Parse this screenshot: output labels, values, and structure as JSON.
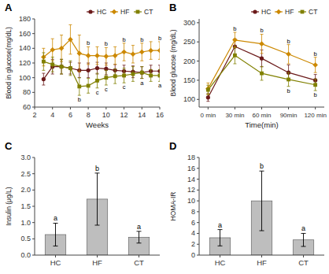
{
  "chart_data": [
    {
      "type": "line",
      "title": "A",
      "xlabel": "Weeks",
      "ylabel": "Blood in glucose(mg/dL)",
      "x": [
        3,
        4,
        5,
        6,
        7,
        8,
        9,
        10,
        11,
        12,
        13,
        14,
        15,
        16
      ],
      "xlim": [
        2,
        16
      ],
      "xticks": [
        2,
        4,
        6,
        8,
        10,
        12,
        14,
        16
      ],
      "ylim": [
        60,
        180
      ],
      "yticks": [
        60,
        80,
        100,
        120,
        140,
        160,
        180
      ],
      "legend": "upper right",
      "grid": false,
      "series": [
        {
          "name": "HC",
          "color": "#6B1A1A",
          "marker": "circle",
          "values": [
            98,
            115,
            115,
            113,
            110,
            110,
            113,
            112,
            110,
            109,
            108,
            107,
            109,
            109
          ],
          "errors": [
            8,
            10,
            10,
            8,
            10,
            10,
            8,
            8,
            8,
            8,
            8,
            8,
            8,
            8
          ]
        },
        {
          "name": "HF",
          "color": "#CC8800",
          "marker": "diamond",
          "values": [
            128,
            138,
            140,
            152,
            133,
            130,
            130,
            129,
            130,
            135,
            132,
            135,
            137,
            137
          ],
          "errors": [
            12,
            15,
            18,
            20,
            25,
            12,
            12,
            12,
            12,
            12,
            12,
            12,
            12,
            12
          ]
        },
        {
          "name": "CT",
          "color": "#808000",
          "marker": "square",
          "values": [
            122,
            118,
            115,
            113,
            88,
            89,
            96,
            100,
            102,
            103,
            105,
            107,
            103,
            103
          ],
          "errors": [
            12,
            10,
            10,
            10,
            12,
            10,
            10,
            10,
            10,
            10,
            10,
            8,
            8,
            8
          ]
        }
      ],
      "annotations": [
        {
          "x": 8,
          "series": "HF",
          "text": "b"
        },
        {
          "x": 10,
          "series": "HF",
          "text": "b"
        },
        {
          "x": 12,
          "series": "HF",
          "text": "b"
        },
        {
          "x": 14,
          "series": "HF",
          "text": "b"
        },
        {
          "x": 16,
          "series": "HF",
          "text": "b"
        },
        {
          "x": 7,
          "series": "CT",
          "text": "b"
        },
        {
          "x": 9,
          "series": "CT",
          "text": "c"
        },
        {
          "x": 10,
          "series": "CT",
          "text": "c"
        },
        {
          "x": 12,
          "series": "CT",
          "text": "c"
        },
        {
          "x": 14,
          "series": "CT",
          "text": "a"
        },
        {
          "x": 16,
          "series": "CT",
          "text": "a"
        }
      ]
    },
    {
      "type": "line",
      "title": "B",
      "xlabel": "Time(min)",
      "ylabel": "Blood glucose (mg/dL)",
      "x": [
        0,
        30,
        60,
        90,
        120
      ],
      "xlim": [
        -10,
        130
      ],
      "xticks": [
        {
          "value": 0,
          "label": "0 min"
        },
        {
          "value": 30,
          "label": "30 min"
        },
        {
          "value": 60,
          "label": "60 min"
        },
        {
          "value": 90,
          "label": "90min"
        },
        {
          "value": 120,
          "label": "120 min"
        }
      ],
      "ylim": [
        80,
        310
      ],
      "yticks": [
        100,
        150,
        200,
        250,
        300
      ],
      "legend": "upper right",
      "grid": false,
      "series": [
        {
          "name": "HC",
          "color": "#6B1A1A",
          "marker": "circle",
          "values": [
            105,
            238,
            207,
            170,
            150
          ],
          "errors": [
            10,
            20,
            22,
            20,
            15
          ]
        },
        {
          "name": "HF",
          "color": "#CC8800",
          "marker": "diamond",
          "values": [
            128,
            255,
            245,
            218,
            190
          ],
          "errors": [
            15,
            20,
            25,
            25,
            20
          ]
        },
        {
          "name": "CT",
          "color": "#808000",
          "marker": "square",
          "values": [
            125,
            215,
            168,
            152,
            138
          ],
          "errors": [
            12,
            22,
            18,
            18,
            15
          ]
        }
      ],
      "annotations": [
        {
          "x": 30,
          "series": "HF",
          "text": "b"
        },
        {
          "x": 60,
          "series": "HF",
          "text": "b"
        },
        {
          "x": 90,
          "series": "HF",
          "text": "b"
        },
        {
          "x": 120,
          "series": "HF",
          "text": "b"
        },
        {
          "x": 90,
          "series": "CT",
          "text": "b"
        },
        {
          "x": 120,
          "series": "CT",
          "text": "b"
        }
      ]
    },
    {
      "type": "bar",
      "title": "C",
      "ylabel": "Insulin (μg/L)",
      "categories": [
        "HC",
        "HF",
        "CT"
      ],
      "values": [
        0.63,
        1.72,
        0.55
      ],
      "errors": [
        0.35,
        0.8,
        0.18
      ],
      "color": "#BEBEBE",
      "ylim": [
        0,
        3.0
      ],
      "yticks": [
        {
          "value": 0,
          "label": "0.0"
        },
        0.5,
        {
          "value": 1,
          "label": "1.0"
        },
        1.5,
        {
          "value": 2,
          "label": "2.0"
        },
        2.5,
        {
          "value": 3,
          "label": "3.0"
        }
      ],
      "grid": false,
      "annotations": [
        {
          "x": "HC",
          "text": "a"
        },
        {
          "x": "HF",
          "text": "b"
        },
        {
          "x": "CT",
          "text": "a"
        }
      ]
    },
    {
      "type": "bar",
      "title": "D",
      "ylabel": "HOMA-IR",
      "categories": [
        "HC",
        "HF",
        "CT"
      ],
      "values": [
        3.2,
        10.0,
        2.8
      ],
      "errors": [
        1.5,
        5.5,
        1.2
      ],
      "color": "#BEBEBE",
      "ylim": [
        0,
        18
      ],
      "yticks": [
        0,
        2,
        4,
        6,
        8,
        10,
        12,
        14,
        16,
        18
      ],
      "grid": false,
      "annotations": [
        {
          "x": "HC",
          "text": "a"
        },
        {
          "x": "HF",
          "text": "b"
        },
        {
          "x": "CT",
          "text": "a"
        }
      ]
    }
  ]
}
